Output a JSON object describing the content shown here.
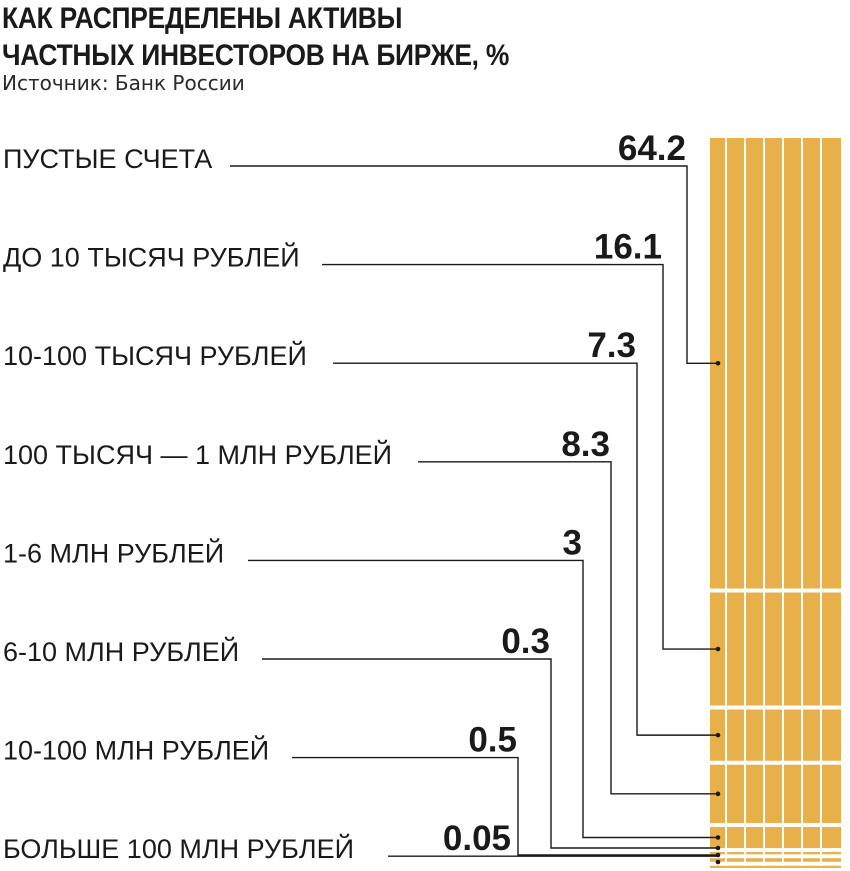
{
  "chart_data": {
    "type": "bar",
    "title_lines": [
      "КАК РАСПРЕДЕЛЕНЫ АКТИВЫ",
      "ЧАСТНЫХ ИНВЕСТОРОВ НА БИРЖЕ, %"
    ],
    "source": "Источник: Банк России",
    "stacked": true,
    "categories": [
      "ПУСТЫЕ СЧЕТА",
      "ДО 10 ТЫСЯЧ РУБЛЕЙ",
      "10-100 ТЫСЯЧ РУБЛЕЙ",
      "100 ТЫСЯЧ — 1 МЛН РУБЛЕЙ",
      "1-6 МЛН РУБЛЕЙ",
      "6-10 МЛН РУБЛЕЙ",
      "10-100 МЛН РУБЛЕЙ",
      "БОЛЬШЕ 100 МЛН РУБЛЕЙ"
    ],
    "value_labels": [
      "64.2",
      "16.1",
      "7.3",
      "8.3",
      "3",
      "0.3",
      "0.5",
      "0.05"
    ],
    "values": [
      64.2,
      16.1,
      7.3,
      8.3,
      3,
      0.3,
      0.5,
      0.05
    ],
    "bar_color": "#E8B04A",
    "line_color": "#1a1a1a"
  }
}
